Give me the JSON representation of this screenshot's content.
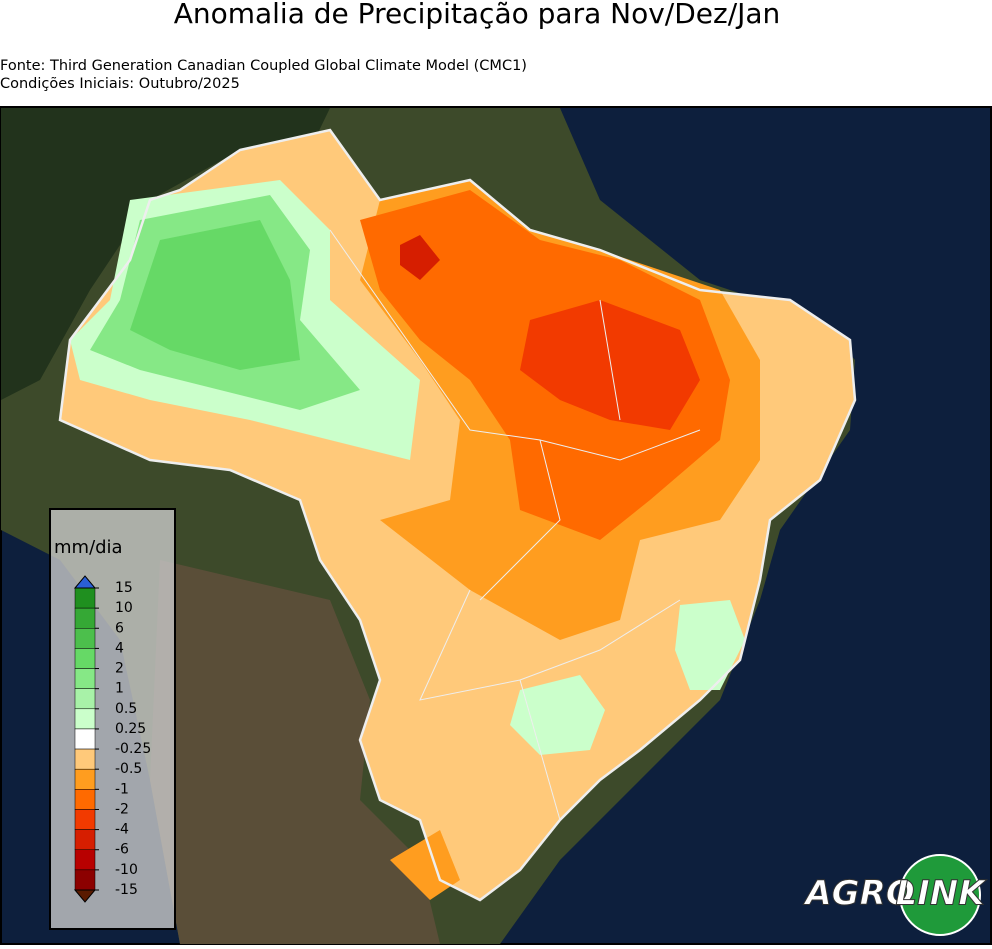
{
  "header": {
    "title": "Anomalia de Precipitação para Nov/Dez/Jan",
    "source": "Fonte: Third Generation Canadian Coupled Global Climate Model (CMC1)",
    "initial_conditions": "Condições Iniciais: Outubro/2025"
  },
  "legend": {
    "title": "mm/dia",
    "labels": [
      "15",
      "10",
      "6",
      "4",
      "2",
      "1",
      "0.5",
      "0.25",
      "-0.25",
      "-0.5",
      "-1",
      "-2",
      "-4",
      "-6",
      "-10",
      "-15"
    ],
    "colors": [
      "#1f8f1f",
      "#35a835",
      "#4cbf4c",
      "#66d966",
      "#86e886",
      "#a8f2a8",
      "#cbffcb",
      "#ffffff",
      "#ffc97a",
      "#ff9d1f",
      "#ff6a00",
      "#f23a00",
      "#d61e00",
      "#b80000",
      "#8c0000"
    ],
    "over_color": "#2a5fd6",
    "under_color": "#5a1a00"
  },
  "logo": {
    "left": "AGRO",
    "right": "LINK"
  }
}
